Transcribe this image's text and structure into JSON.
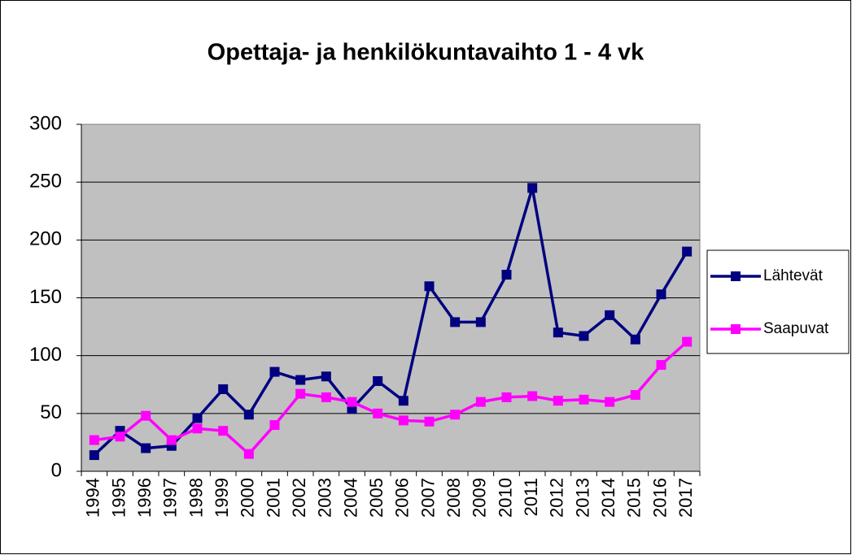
{
  "chart_data": {
    "type": "line",
    "title": "Opettaja- ja henkilökuntavaihto 1 - 4 vk",
    "categories": [
      "1994",
      "1995",
      "1996",
      "1997",
      "1998",
      "1999",
      "2000",
      "2001",
      "2002",
      "2003",
      "2004",
      "2005",
      "2006",
      "2007",
      "2008",
      "2009",
      "2010",
      "2011",
      "2012",
      "2013",
      "2014",
      "2015",
      "2016",
      "2017"
    ],
    "series": [
      {
        "name": "Lähtevät",
        "color": "#000080",
        "values": [
          14,
          35,
          20,
          22,
          46,
          71,
          49,
          86,
          79,
          82,
          54,
          78,
          61,
          160,
          129,
          129,
          170,
          245,
          120,
          117,
          135,
          114,
          153,
          190
        ]
      },
      {
        "name": "Saapuvat",
        "color": "#ff00ff",
        "values": [
          27,
          30,
          48,
          27,
          37,
          35,
          15,
          40,
          67,
          64,
          60,
          50,
          44,
          43,
          49,
          60,
          64,
          65,
          61,
          62,
          60,
          66,
          92,
          112
        ]
      }
    ],
    "ylim": [
      0,
      300
    ],
    "yticks": [
      0,
      50,
      100,
      150,
      200,
      250,
      300
    ],
    "grid": true,
    "legend": "right"
  }
}
